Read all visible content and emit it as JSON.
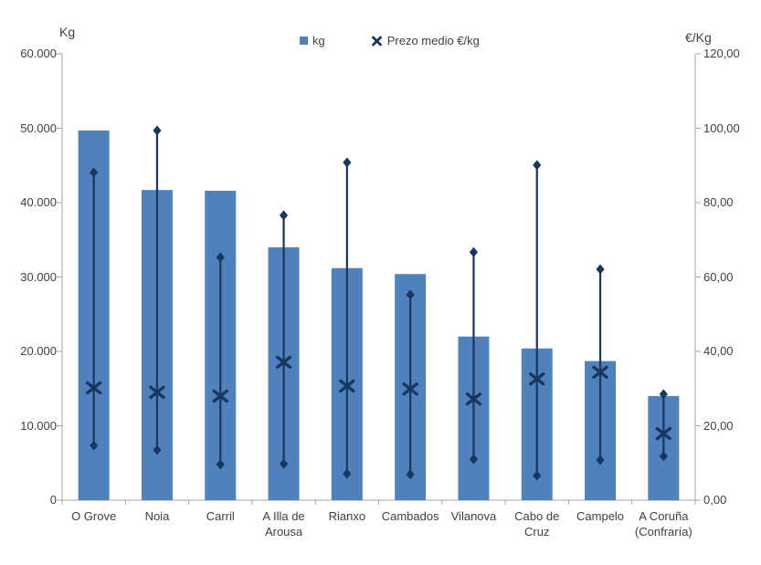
{
  "chart_data": {
    "type": "bar",
    "title": "",
    "categories": [
      "O Grove",
      "Noia",
      "Carril",
      "A Illa de Arousa",
      "Rianxo",
      "Cambados",
      "Vilanova",
      "Cabo de Cruz",
      "Campelo",
      "A Coruña (Confraría)"
    ],
    "series": [
      {
        "name": "kg",
        "type": "bar",
        "axis": "left",
        "values": [
          49700,
          41700,
          41600,
          34000,
          31200,
          30400,
          22000,
          20400,
          18700,
          14000
        ]
      },
      {
        "name": "Prezo medio €/kg",
        "type": "high-low-mean",
        "axis": "right",
        "high": [
          88.1,
          99.4,
          65.3,
          76.6,
          90.8,
          55.2,
          66.7,
          90.1,
          62.1,
          28.5
        ],
        "mean": [
          30.2,
          29.0,
          28.0,
          37.1,
          30.7,
          29.9,
          27.2,
          32.6,
          34.4,
          17.9
        ],
        "low": [
          14.7,
          13.5,
          9.6,
          9.8,
          7.1,
          6.9,
          11.0,
          6.6,
          10.8,
          11.8
        ]
      }
    ],
    "left_axis": {
      "title": "Kg",
      "min": 0,
      "max": 60000,
      "tick_labels": [
        "60.000",
        "50.000",
        "40.000",
        "30.000",
        "20.000",
        "10.000",
        "0"
      ]
    },
    "right_axis": {
      "title": "€/Kg",
      "min": 0,
      "max": 120,
      "tick_labels": [
        "120,00",
        "100,00",
        "80,00",
        "60,00",
        "40,00",
        "20,00",
        "0,00"
      ]
    },
    "legend": [
      {
        "label": "kg",
        "marker": "square"
      },
      {
        "label": "Prezo medio €/kg",
        "marker": "x"
      }
    ],
    "legend_position": "top-center",
    "grid": false,
    "colors": {
      "bar": "#4F81BD",
      "price": "#17375E",
      "axis": "#A6A6A6",
      "text": "#404040"
    }
  }
}
